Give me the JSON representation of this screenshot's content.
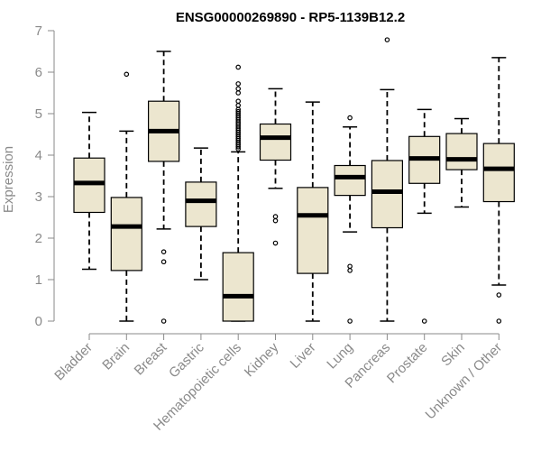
{
  "chart_data": {
    "type": "boxplot",
    "title": "ENSG00000269890 - RP5-1139B12.2",
    "ylabel": "Expression",
    "xlabel": "",
    "ylim": [
      0,
      7
    ],
    "yticks": [
      0,
      1,
      2,
      3,
      4,
      5,
      6,
      7
    ],
    "grid": false,
    "colors": {
      "box_fill": "#ece6cf",
      "median": "#000000",
      "outline": "#000000"
    },
    "categories": [
      "Bladder",
      "Brain",
      "Breast",
      "Gastric",
      "Hematopoietic cells",
      "Kidney",
      "Liver",
      "Lung",
      "Pancreas",
      "Prostate",
      "Skin",
      "Unknown / Other"
    ],
    "boxes": [
      {
        "category": "Bladder",
        "whisker_low": 1.25,
        "q1": 2.62,
        "median": 3.33,
        "q3": 3.93,
        "whisker_high": 5.03,
        "outliers": []
      },
      {
        "category": "Brain",
        "whisker_low": 0.0,
        "q1": 1.22,
        "median": 2.28,
        "q3": 2.98,
        "whisker_high": 4.58,
        "outliers": [
          5.95
        ]
      },
      {
        "category": "Breast",
        "whisker_low": 2.22,
        "q1": 3.85,
        "median": 4.58,
        "q3": 5.3,
        "whisker_high": 6.5,
        "outliers": [
          1.67,
          1.43,
          0.0
        ]
      },
      {
        "category": "Gastric",
        "whisker_low": 1.0,
        "q1": 2.28,
        "median": 2.9,
        "q3": 3.35,
        "whisker_high": 4.17,
        "outliers": []
      },
      {
        "category": "Hematopoietic cells",
        "whisker_low": 0.0,
        "q1": 0.0,
        "median": 0.6,
        "q3": 1.65,
        "whisker_high": 4.08,
        "outliers": [
          4.15,
          4.2,
          4.25,
          4.3,
          4.35,
          4.4,
          4.45,
          4.5,
          4.55,
          4.6,
          4.65,
          4.7,
          4.75,
          4.8,
          4.85,
          4.9,
          4.95,
          5.0,
          5.05,
          5.1,
          5.2,
          5.3,
          5.5,
          5.6,
          5.72,
          6.12
        ]
      },
      {
        "category": "Kidney",
        "whisker_low": 3.2,
        "q1": 3.88,
        "median": 4.42,
        "q3": 4.75,
        "whisker_high": 5.6,
        "outliers": [
          2.52,
          2.42,
          1.88
        ]
      },
      {
        "category": "Liver",
        "whisker_low": 0.0,
        "q1": 1.15,
        "median": 2.55,
        "q3": 3.22,
        "whisker_high": 5.28,
        "outliers": []
      },
      {
        "category": "Lung",
        "whisker_low": 2.15,
        "q1": 3.03,
        "median": 3.47,
        "q3": 3.75,
        "whisker_high": 4.68,
        "outliers": [
          4.9,
          1.32,
          1.22,
          0.0
        ]
      },
      {
        "category": "Pancreas",
        "whisker_low": 0.0,
        "q1": 2.25,
        "median": 3.12,
        "q3": 3.87,
        "whisker_high": 5.58,
        "outliers": [
          6.78
        ]
      },
      {
        "category": "Prostate",
        "whisker_low": 2.6,
        "q1": 3.32,
        "median": 3.92,
        "q3": 4.45,
        "whisker_high": 5.1,
        "outliers": [
          0.0
        ]
      },
      {
        "category": "Skin",
        "whisker_low": 2.75,
        "q1": 3.65,
        "median": 3.9,
        "q3": 4.52,
        "whisker_high": 4.88,
        "outliers": []
      },
      {
        "category": "Unknown / Other",
        "whisker_low": 0.87,
        "q1": 2.88,
        "median": 3.67,
        "q3": 4.28,
        "whisker_high": 6.35,
        "outliers": [
          0.63,
          0.0
        ]
      }
    ]
  }
}
